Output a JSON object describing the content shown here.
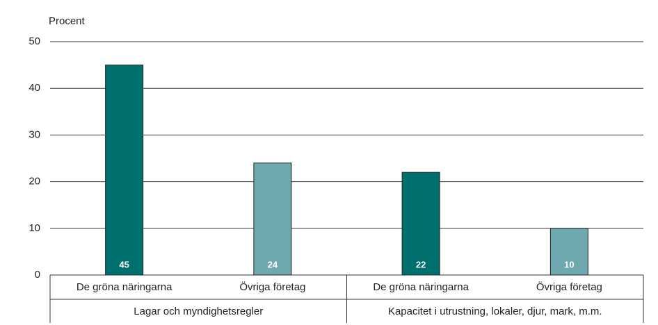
{
  "chart_data": {
    "type": "bar",
    "y_axis_label": "Procent",
    "groups": [
      {
        "label": "Lagar och myndighetsregler",
        "categories": [
          "De gröna näringarna",
          "Övriga företag"
        ],
        "values": [
          45,
          24
        ]
      },
      {
        "label": "Kapacitet i utrustning, lokaler, djur, mark, m.m.",
        "categories": [
          "De gröna näringarna",
          "Övriga företag"
        ],
        "values": [
          22,
          10
        ]
      }
    ],
    "colors": [
      "#00706f",
      "#6fa9b0"
    ],
    "ylim": [
      0,
      50
    ],
    "yticks": [
      0,
      10,
      20,
      30,
      40,
      50
    ],
    "grid": true
  }
}
